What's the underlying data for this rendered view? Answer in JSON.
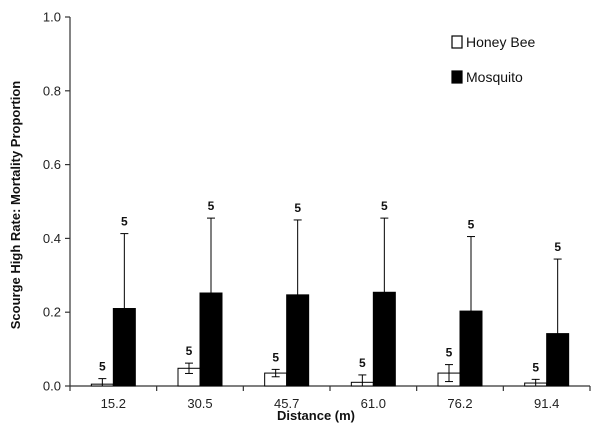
{
  "chart_data": {
    "type": "bar",
    "title": "",
    "xlabel": "Distance (m)",
    "ylabel": "Scourge High Rate: Mortality Proportion",
    "categories": [
      "15.2",
      "30.5",
      "45.7",
      "61.0",
      "76.2",
      "91.4"
    ],
    "ylim": [
      0,
      1.0
    ],
    "yticks": [
      "0.0",
      "0.2",
      "0.4",
      "0.6",
      "0.8",
      "1.0"
    ],
    "ytick_values": [
      0,
      0.2,
      0.4,
      0.6,
      0.8,
      1.0
    ],
    "grid": false,
    "legend_position": "top-right",
    "series": [
      {
        "name": "Honey Bee",
        "color": "#ffffff",
        "values": [
          0.005,
          0.048,
          0.035,
          0.01,
          0.035,
          0.008
        ],
        "error_upper": [
          0.02,
          0.062,
          0.045,
          0.03,
          0.058,
          0.018
        ],
        "n_labels": [
          "5",
          "5",
          "5",
          "5",
          "5",
          "5"
        ]
      },
      {
        "name": "Mosquito",
        "color": "#000000",
        "values": [
          0.21,
          0.252,
          0.247,
          0.254,
          0.203,
          0.142
        ],
        "error_upper": [
          0.413,
          0.455,
          0.45,
          0.455,
          0.405,
          0.344
        ],
        "n_labels": [
          "5",
          "5",
          "5",
          "5",
          "5",
          "5"
        ]
      }
    ]
  }
}
